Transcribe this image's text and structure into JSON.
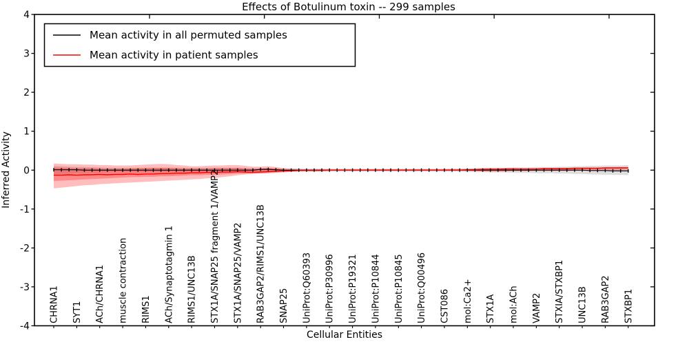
{
  "chart_data": {
    "type": "line",
    "title": "Effects of Botulinum toxin -- 299 samples",
    "xlabel": "Cellular Entities",
    "ylabel": "Inferred Activity",
    "ylim": [
      -4,
      4
    ],
    "yticks": [
      4,
      3,
      2,
      1,
      0,
      -1,
      -2,
      -3,
      -4
    ],
    "grid": false,
    "legend_position": "upper-left",
    "n_points": 76,
    "points_per_label": 3,
    "x_major_tick_indices": [
      12.5,
      27.5,
      42.5,
      57.5,
      72.5
    ],
    "categories": [
      "CHRNA1",
      "SYT1",
      "ACh/CHRNA1",
      "muscle contraction",
      "RIMS1",
      "ACh/Synaptotagmin 1",
      "RIMS1/UNC13B",
      "STX1A/SNAP25 fragment 1/VAMP2",
      "STX1A/SNAP25/VAMP2",
      "RAB3GAP2/RIMS1/UNC13B",
      "SNAP25",
      "UniProt:Q60393",
      "UniProt:P30996",
      "UniProt:P19321",
      "UniProt:P10844",
      "UniProt:P10845",
      "UniProt:Q00496",
      "CST086",
      "mol:Ca2+",
      "STX1A",
      "mol:ACh",
      "VAMP2",
      "STXIA/STXBP1",
      "UNC13B",
      "RAB3GAP2",
      "STXBP1"
    ],
    "series": [
      {
        "name": "Mean activity in all permuted samples",
        "color": "#000000",
        "line_width": 1.2,
        "markers": true,
        "values": [
          0.01,
          0.01,
          0.01,
          0.01,
          0,
          0,
          0,
          0,
          0,
          0,
          0,
          0,
          0,
          0,
          0,
          0,
          0,
          0,
          0,
          0,
          0,
          0,
          0,
          0,
          0,
          0,
          0,
          0.02,
          0.02,
          0.01,
          0,
          0,
          0,
          0,
          0,
          0,
          0,
          0,
          0,
          0,
          0,
          0,
          0,
          0,
          0,
          0,
          0,
          0,
          0,
          0,
          0,
          0,
          0,
          0,
          0,
          0,
          0,
          0,
          0,
          0,
          0,
          0,
          0,
          0,
          0,
          0,
          0,
          0,
          0,
          0,
          -0.01,
          -0.01,
          -0.01,
          -0.02,
          -0.02,
          -0.02
        ]
      },
      {
        "name": "Mean activity in patient samples",
        "color": "#ff0000",
        "line_width": 1.4,
        "markers": false,
        "values": [
          -0.13,
          -0.13,
          -0.12,
          -0.13,
          -0.12,
          -0.12,
          -0.11,
          -0.12,
          -0.11,
          -0.11,
          -0.1,
          -0.11,
          -0.1,
          -0.1,
          -0.09,
          -0.09,
          -0.08,
          -0.08,
          -0.07,
          -0.07,
          -0.06,
          -0.06,
          -0.05,
          -0.05,
          -0.04,
          -0.05,
          -0.06,
          -0.05,
          -0.04,
          -0.03,
          -0.02,
          -0.02,
          -0.01,
          -0.01,
          -0.01,
          -0.01,
          0,
          0,
          0,
          0,
          0,
          0,
          0,
          0,
          0,
          0,
          0,
          0,
          0,
          0,
          0,
          0,
          0,
          0,
          0.01,
          0.01,
          0.02,
          0.02,
          0.02,
          0.03,
          0.03,
          0.03,
          0.03,
          0.03,
          0.04,
          0.04,
          0.04,
          0.04,
          0.05,
          0.05,
          0.05,
          0.05,
          0.06,
          0.06,
          0.06,
          0.06
        ]
      }
    ],
    "bands": [
      {
        "name": "permuted-confidence-band",
        "color": "#999999",
        "opacity": 0.32,
        "upper": [
          0.11,
          0.1,
          0.09,
          0.08,
          0.08,
          0.07,
          0.07,
          0.06,
          0.06,
          0.06,
          0.06,
          0.06,
          0.06,
          0.06,
          0.06,
          0.06,
          0.06,
          0.06,
          0.06,
          0.06,
          0.06,
          0.06,
          0.06,
          0.06,
          0.06,
          0.05,
          0.05,
          0.05,
          0.05,
          0.05,
          0.04,
          0.04,
          0.04,
          0.04,
          0.04,
          0.04,
          0.04,
          0.04,
          0.04,
          0.04,
          0.04,
          0.04,
          0.04,
          0.04,
          0.04,
          0.04,
          0.04,
          0.04,
          0.04,
          0.04,
          0.04,
          0.04,
          0.04,
          0.04,
          0.05,
          0.05,
          0.05,
          0.06,
          0.06,
          0.06,
          0.07,
          0.07,
          0.07,
          0.08,
          0.08,
          0.08,
          0.09,
          0.09,
          0.1,
          0.1,
          0.11,
          0.11,
          0.12,
          0.12,
          0.12,
          0.13
        ],
        "lower": [
          -0.11,
          -0.1,
          -0.09,
          -0.08,
          -0.08,
          -0.07,
          -0.07,
          -0.06,
          -0.06,
          -0.06,
          -0.06,
          -0.06,
          -0.06,
          -0.06,
          -0.06,
          -0.06,
          -0.06,
          -0.06,
          -0.06,
          -0.06,
          -0.06,
          -0.06,
          -0.06,
          -0.06,
          -0.06,
          -0.05,
          -0.05,
          -0.05,
          -0.05,
          -0.05,
          -0.04,
          -0.04,
          -0.04,
          -0.04,
          -0.04,
          -0.04,
          -0.04,
          -0.04,
          -0.04,
          -0.04,
          -0.04,
          -0.04,
          -0.04,
          -0.04,
          -0.04,
          -0.04,
          -0.04,
          -0.04,
          -0.04,
          -0.04,
          -0.04,
          -0.04,
          -0.04,
          -0.04,
          -0.05,
          -0.05,
          -0.05,
          -0.06,
          -0.06,
          -0.06,
          -0.07,
          -0.07,
          -0.07,
          -0.08,
          -0.08,
          -0.08,
          -0.09,
          -0.09,
          -0.1,
          -0.1,
          -0.11,
          -0.11,
          -0.12,
          -0.12,
          -0.12,
          -0.13
        ]
      },
      {
        "name": "patient-confidence-band-outer",
        "color": "#ff0000",
        "opacity": 0.26,
        "upper": [
          0.17,
          0.16,
          0.15,
          0.15,
          0.14,
          0.14,
          0.13,
          0.13,
          0.12,
          0.12,
          0.12,
          0.13,
          0.14,
          0.15,
          0.16,
          0.15,
          0.13,
          0.12,
          0.1,
          0.1,
          0.11,
          0.12,
          0.12,
          0.13,
          0.13,
          0.11,
          0.09,
          0.09,
          0.1,
          0.08,
          0.05,
          0.04,
          0.03,
          0.02,
          0.02,
          0.02,
          0.02,
          0.02,
          0.02,
          0.02,
          0.02,
          0.02,
          0.02,
          0.02,
          0.02,
          0.02,
          0.02,
          0.02,
          0.02,
          0.02,
          0.02,
          0.02,
          0.03,
          0.03,
          0.03,
          0.04,
          0.05,
          0.05,
          0.05,
          0.05,
          0.05,
          0.04,
          0.04,
          0.04,
          0.04,
          0.04,
          0.05,
          0.05,
          0.05,
          0.06,
          0.06,
          0.06,
          0.07,
          0.07,
          0.08,
          0.08
        ],
        "lower": [
          -0.47,
          -0.45,
          -0.43,
          -0.41,
          -0.39,
          -0.38,
          -0.36,
          -0.35,
          -0.34,
          -0.33,
          -0.32,
          -0.31,
          -0.3,
          -0.29,
          -0.28,
          -0.27,
          -0.26,
          -0.25,
          -0.24,
          -0.23,
          -0.21,
          -0.2,
          -0.18,
          -0.16,
          -0.13,
          -0.11,
          -0.1,
          -0.09,
          -0.08,
          -0.07,
          -0.06,
          -0.04,
          -0.03,
          -0.02,
          -0.02,
          -0.02,
          -0.02,
          -0.02,
          -0.02,
          -0.02,
          -0.02,
          -0.02,
          -0.02,
          -0.02,
          -0.02,
          -0.02,
          -0.02,
          -0.02,
          -0.02,
          -0.02,
          -0.02,
          -0.02,
          -0.02,
          -0.02,
          -0.02,
          -0.03,
          -0.04,
          -0.04,
          -0.04,
          -0.04,
          -0.03,
          -0.03,
          -0.03,
          -0.02,
          -0.02,
          -0.02,
          -0.02,
          -0.02,
          -0.01,
          -0.01,
          -0.01,
          -0.01,
          0.0,
          0.0,
          0.0,
          0.01
        ]
      },
      {
        "name": "patient-confidence-band-inner",
        "color": "#ff0000",
        "opacity": 0.28,
        "upper": [
          0.07,
          0.06,
          0.06,
          0.05,
          0.05,
          0.05,
          0.04,
          0.04,
          0.04,
          0.04,
          0.04,
          0.05,
          0.05,
          0.06,
          0.06,
          0.06,
          0.05,
          0.04,
          0.04,
          0.04,
          0.04,
          0.05,
          0.05,
          0.05,
          0.06,
          0.04,
          0.03,
          0.03,
          0.05,
          0.04,
          0.02,
          0.01,
          0.01,
          0.01,
          0.01,
          0.01,
          0.01,
          0.01,
          0.01,
          0.01,
          0.01,
          0.01,
          0.01,
          0.01,
          0.01,
          0.01,
          0.01,
          0.01,
          0.01,
          0.01,
          0.01,
          0.01,
          0.01,
          0.01,
          0.02,
          0.02,
          0.03,
          0.03,
          0.03,
          0.04,
          0.04,
          0.04,
          0.04,
          0.04,
          0.04,
          0.04,
          0.05,
          0.05,
          0.05,
          0.06,
          0.06,
          0.06,
          0.07,
          0.07,
          0.07,
          0.07
        ],
        "lower": [
          -0.28,
          -0.27,
          -0.26,
          -0.25,
          -0.24,
          -0.23,
          -0.22,
          -0.21,
          -0.2,
          -0.19,
          -0.18,
          -0.18,
          -0.17,
          -0.17,
          -0.16,
          -0.16,
          -0.15,
          -0.14,
          -0.13,
          -0.13,
          -0.12,
          -0.12,
          -0.11,
          -0.1,
          -0.09,
          -0.09,
          -0.08,
          -0.08,
          -0.07,
          -0.06,
          -0.04,
          -0.03,
          -0.02,
          -0.02,
          -0.01,
          -0.01,
          -0.01,
          -0.01,
          -0.01,
          -0.01,
          -0.01,
          -0.01,
          -0.01,
          -0.01,
          -0.01,
          -0.01,
          -0.01,
          -0.01,
          -0.01,
          -0.01,
          -0.01,
          -0.01,
          -0.01,
          -0.01,
          -0.01,
          -0.01,
          -0.02,
          -0.02,
          -0.02,
          -0.02,
          -0.01,
          -0.01,
          0.0,
          0.0,
          0.0,
          0.0,
          0.0,
          0.01,
          0.01,
          0.02,
          0.02,
          0.02,
          0.03,
          0.03,
          0.03,
          0.04
        ]
      }
    ]
  }
}
